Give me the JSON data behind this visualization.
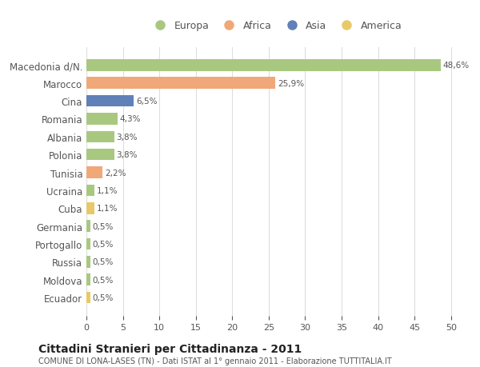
{
  "categories": [
    "Ecuador",
    "Moldova",
    "Russia",
    "Portogallo",
    "Germania",
    "Cuba",
    "Ucraina",
    "Tunisia",
    "Polonia",
    "Albania",
    "Romania",
    "Cina",
    "Marocco",
    "Macedonia d/N."
  ],
  "values": [
    0.5,
    0.5,
    0.5,
    0.5,
    0.5,
    1.1,
    1.1,
    2.2,
    3.8,
    3.8,
    4.3,
    6.5,
    25.9,
    48.6
  ],
  "labels": [
    "0,5%",
    "0,5%",
    "0,5%",
    "0,5%",
    "0,5%",
    "1,1%",
    "1,1%",
    "2,2%",
    "3,8%",
    "3,8%",
    "4,3%",
    "6,5%",
    "25,9%",
    "48,6%"
  ],
  "colors": [
    "#e8c96a",
    "#a8c880",
    "#a8c880",
    "#a8c880",
    "#a8c880",
    "#e8c96a",
    "#a8c880",
    "#f0a878",
    "#a8c880",
    "#a8c880",
    "#a8c880",
    "#6080b8",
    "#f0a878",
    "#a8c880"
  ],
  "legend_labels": [
    "Europa",
    "Africa",
    "Asia",
    "America"
  ],
  "legend_colors": [
    "#a8c880",
    "#f0a878",
    "#6080b8",
    "#e8c96a"
  ],
  "title": "Cittadini Stranieri per Cittadinanza - 2011",
  "subtitle": "COMUNE DI LONA-LASES (TN) - Dati ISTAT al 1° gennaio 2011 - Elaborazione TUTTITALIA.IT",
  "xlim": [
    0,
    52
  ],
  "xticks": [
    0,
    5,
    10,
    15,
    20,
    25,
    30,
    35,
    40,
    45,
    50
  ],
  "bg_color": "#ffffff",
  "grid_color": "#dddddd",
  "bar_height": 0.65,
  "text_color": "#555555",
  "label_color": "#555555"
}
